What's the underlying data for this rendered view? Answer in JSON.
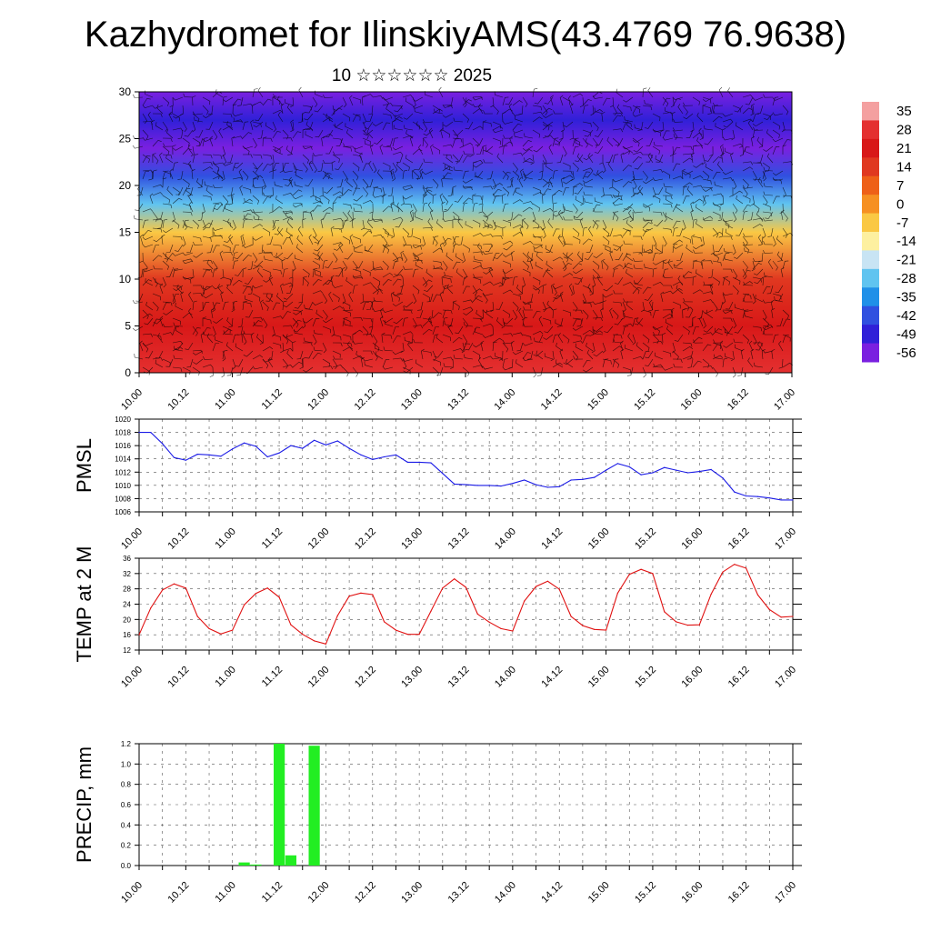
{
  "title": "Kazhydromet for IlinskiyAMS(43.4769 76.9638)",
  "subtitle": "10 ☆☆☆☆☆☆ 2025",
  "colors": {
    "pmsl_line": "#1a1ae6",
    "temp_line": "#e01010",
    "precip_bar": "#22ee22",
    "wind_barb": "#000000"
  },
  "chart_data": [
    {
      "type": "heatmap",
      "description_key": "temperature-height cross section",
      "x_ticks": [
        "10.00",
        "10.12",
        "11.00",
        "11.12",
        "12.00",
        "12.12",
        "13.00",
        "13.12",
        "14.00",
        "14.12",
        "15.00",
        "15.12",
        "16.00",
        "16.12",
        "17.00"
      ],
      "y_ticks": [
        "0",
        "5",
        "10",
        "15",
        "20",
        "25",
        "30"
      ],
      "ylim": [
        0,
        30
      ],
      "colorbar_labels": [
        "35",
        "28",
        "21",
        "14",
        "7",
        "0",
        "-7",
        "-14",
        "-21",
        "-28",
        "-35",
        "-42",
        "-49",
        "-56"
      ],
      "colorbar_colors": [
        "#f4a0a0",
        "#e43030",
        "#d81818",
        "#e03820",
        "#ee6018",
        "#f69022",
        "#fac844",
        "#fdf0a0",
        "#c8e4f4",
        "#60c4f0",
        "#2090e8",
        "#3050e0",
        "#3020d8",
        "#7a20e0"
      ],
      "contour_levels": [
        35,
        28,
        21,
        14,
        7,
        0,
        -7,
        -14,
        -21,
        -28,
        -35,
        -42,
        -49,
        -56
      ],
      "vertical_profile": [
        {
          "height": 0,
          "temp": 26
        },
        {
          "height": 5,
          "temp": 18
        },
        {
          "height": 10,
          "temp": 8
        },
        {
          "height": 15,
          "temp": -8
        },
        {
          "height": 18,
          "temp": -30
        },
        {
          "height": 21,
          "temp": -45
        },
        {
          "height": 24,
          "temp": -58
        },
        {
          "height": 27,
          "temp": -52
        },
        {
          "height": 30,
          "temp": -56
        }
      ],
      "overlay": "wind barbs"
    },
    {
      "type": "line",
      "ylabel": "PMSL",
      "ylim": [
        1006,
        1020
      ],
      "y_ticks": [
        "1006",
        "1008",
        "1010",
        "1012",
        "1014",
        "1016",
        "1018",
        "1020"
      ],
      "x_ticks": [
        "10.00",
        "10.12",
        "11.00",
        "11.12",
        "12.00",
        "12.12",
        "13.00",
        "13.12",
        "14.00",
        "14.12",
        "15.00",
        "15.12",
        "16.00",
        "16.12",
        "17.00"
      ],
      "x_range": [
        0,
        168
      ],
      "series": [
        {
          "values": [
            [
              0,
              1018
            ],
            [
              3,
              1018
            ],
            [
              6,
              1016.3
            ],
            [
              9,
              1014.2
            ],
            [
              12,
              1013.8
            ],
            [
              15,
              1014.7
            ],
            [
              18,
              1014.6
            ],
            [
              21,
              1014.4
            ],
            [
              24,
              1015.5
            ],
            [
              27,
              1016.4
            ],
            [
              30,
              1015.9
            ],
            [
              33,
              1014.3
            ],
            [
              36,
              1014.9
            ],
            [
              39,
              1016
            ],
            [
              42,
              1015.6
            ],
            [
              45,
              1016.8
            ],
            [
              48,
              1016.1
            ],
            [
              51,
              1016.7
            ],
            [
              54,
              1015.6
            ],
            [
              57,
              1014.6
            ],
            [
              60,
              1013.9
            ],
            [
              63,
              1014.3
            ],
            [
              66,
              1014.6
            ],
            [
              69,
              1013.5
            ],
            [
              72,
              1013.5
            ],
            [
              75,
              1013.4
            ],
            [
              78,
              1011.8
            ],
            [
              81,
              1010.2
            ],
            [
              84,
              1010.1
            ],
            [
              87,
              1010
            ],
            [
              90,
              1010
            ],
            [
              93,
              1009.9
            ],
            [
              96,
              1010.3
            ],
            [
              99,
              1010.8
            ],
            [
              102,
              1010.1
            ],
            [
              105,
              1009.7
            ],
            [
              108,
              1009.8
            ],
            [
              111,
              1010.8
            ],
            [
              114,
              1010.9
            ],
            [
              117,
              1011.2
            ],
            [
              120,
              1012.3
            ],
            [
              123,
              1013.3
            ],
            [
              126,
              1012.8
            ],
            [
              129,
              1011.6
            ],
            [
              132,
              1011.9
            ],
            [
              135,
              1012.7
            ],
            [
              138,
              1012.3
            ],
            [
              141,
              1011.9
            ],
            [
              144,
              1012.1
            ],
            [
              147,
              1012.4
            ],
            [
              150,
              1011.1
            ],
            [
              153,
              1009
            ],
            [
              156,
              1008.4
            ],
            [
              159,
              1008.3
            ],
            [
              162,
              1008.1
            ],
            [
              165,
              1007.8
            ],
            [
              168,
              1007.8
            ]
          ]
        }
      ]
    },
    {
      "type": "line",
      "ylabel": "TEMP at 2 M",
      "ylim": [
        12,
        36
      ],
      "y_ticks": [
        "12",
        "16",
        "20",
        "24",
        "28",
        "32",
        "36"
      ],
      "x_ticks": [
        "10.00",
        "10.12",
        "11.00",
        "11.12",
        "12.00",
        "12.12",
        "13.00",
        "13.12",
        "14.00",
        "14.12",
        "15.00",
        "15.12",
        "16.00",
        "16.12",
        "17.00"
      ],
      "x_range": [
        0,
        168
      ],
      "series": [
        {
          "values": [
            [
              0,
              16
            ],
            [
              3,
              23
            ],
            [
              6,
              27.7
            ],
            [
              9,
              29.3
            ],
            [
              12,
              28.2
            ],
            [
              15,
              20.8
            ],
            [
              18,
              17.6
            ],
            [
              21,
              16.2
            ],
            [
              24,
              17.2
            ],
            [
              27,
              23.8
            ],
            [
              30,
              26.8
            ],
            [
              33,
              28.2
            ],
            [
              36,
              25.8
            ],
            [
              39,
              18.6
            ],
            [
              42,
              16.1
            ],
            [
              45,
              14.4
            ],
            [
              48,
              13.6
            ],
            [
              51,
              21
            ],
            [
              54,
              26.1
            ],
            [
              57,
              26.9
            ],
            [
              60,
              26.5
            ],
            [
              63,
              19.4
            ],
            [
              66,
              17.2
            ],
            [
              69,
              16.1
            ],
            [
              72,
              16.1
            ],
            [
              75,
              22.2
            ],
            [
              78,
              28.2
            ],
            [
              81,
              30.6
            ],
            [
              84,
              28.4
            ],
            [
              87,
              21.4
            ],
            [
              90,
              19.3
            ],
            [
              93,
              17.6
            ],
            [
              96,
              17
            ],
            [
              99,
              24.8
            ],
            [
              102,
              28.6
            ],
            [
              105,
              30
            ],
            [
              108,
              27.9
            ],
            [
              111,
              20.8
            ],
            [
              114,
              18.4
            ],
            [
              117,
              17.4
            ],
            [
              120,
              17.2
            ],
            [
              123,
              26.9
            ],
            [
              126,
              31.8
            ],
            [
              129,
              33.1
            ],
            [
              132,
              32
            ],
            [
              135,
              22
            ],
            [
              138,
              19.4
            ],
            [
              141,
              18.5
            ],
            [
              144,
              18.6
            ],
            [
              147,
              26.6
            ],
            [
              150,
              32.4
            ],
            [
              153,
              34.4
            ],
            [
              156,
              33.4
            ],
            [
              159,
              26.4
            ],
            [
              162,
              22.6
            ],
            [
              165,
              20.6
            ],
            [
              168,
              20.8
            ]
          ]
        }
      ]
    },
    {
      "type": "bar",
      "ylabel": "PRECIP, mm",
      "ylim": [
        0,
        1.2
      ],
      "y_ticks": [
        "0.0",
        "0.2",
        "0.4",
        "0.6",
        "0.8",
        "1.0",
        "1.2"
      ],
      "x_ticks": [
        "10.00",
        "10.12",
        "11.00",
        "11.12",
        "12.00",
        "12.12",
        "13.00",
        "13.12",
        "14.00",
        "14.12",
        "15.00",
        "15.12",
        "16.00",
        "16.12",
        "17.00"
      ],
      "x_range": [
        0,
        168
      ],
      "bars": [
        {
          "x": 27,
          "value": 0.03
        },
        {
          "x": 30,
          "value": 0.01
        },
        {
          "x": 36,
          "value": 1.2
        },
        {
          "x": 39,
          "value": 0.1
        },
        {
          "x": 45,
          "value": 1.18
        }
      ]
    }
  ]
}
